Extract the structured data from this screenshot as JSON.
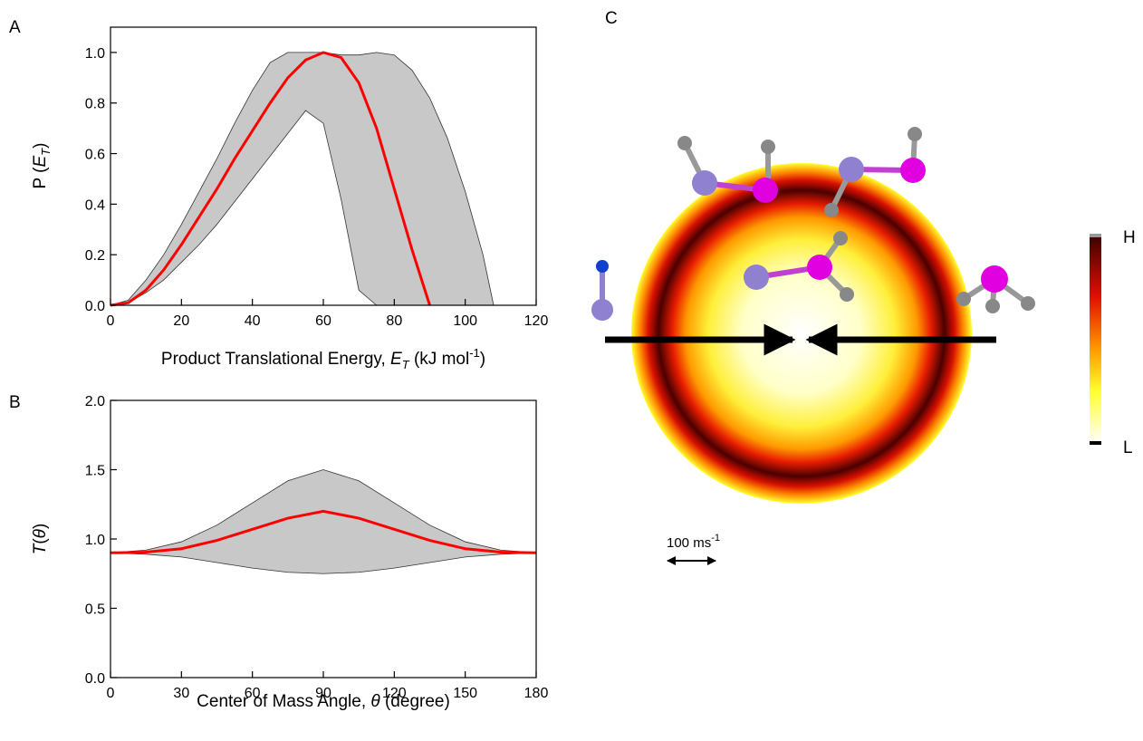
{
  "chart_data": [
    {
      "type": "line",
      "panel": "A",
      "xlabel_parts": [
        "Product Translational Energy, ",
        "E",
        "T",
        " (kJ mol",
        "-1",
        ")"
      ],
      "ylabel_parts": [
        "P (",
        "E",
        "T",
        ")"
      ],
      "x": [
        0,
        5,
        10,
        15,
        20,
        25,
        30,
        35,
        40,
        45,
        50,
        55,
        60,
        65,
        70,
        75,
        80,
        85,
        90,
        95,
        100,
        105,
        108
      ],
      "series": [
        {
          "color": "#ff0000",
          "values": [
            0,
            0.01,
            0.06,
            0.14,
            0.24,
            0.35,
            0.46,
            0.58,
            0.69,
            0.8,
            0.9,
            0.97,
            1.0,
            0.98,
            0.88,
            0.7,
            0.46,
            0.22,
            0,
            null,
            null,
            null,
            null
          ]
        }
      ],
      "band": {
        "color": "#c8c8c8",
        "upper": [
          0,
          0.02,
          0.1,
          0.2,
          0.32,
          0.45,
          0.58,
          0.72,
          0.85,
          0.96,
          1.0,
          1.0,
          1.0,
          0.99,
          0.99,
          1.0,
          0.99,
          0.93,
          0.82,
          0.66,
          0.45,
          0.2,
          0
        ],
        "lower": [
          0,
          0.01,
          0.05,
          0.1,
          0.17,
          0.24,
          0.32,
          0.41,
          0.5,
          0.59,
          0.68,
          0.77,
          0.72,
          0.42,
          0.06,
          0,
          0,
          0,
          0,
          0,
          0,
          0,
          0
        ]
      },
      "xlim": [
        0,
        120
      ],
      "xticks": [
        0,
        20,
        40,
        60,
        80,
        100,
        120
      ],
      "ylim": [
        0,
        1.1
      ],
      "yticks": [
        {
          "value": 0,
          "label": "0.0"
        },
        0.2,
        0.4,
        0.6,
        0.8,
        {
          "value": 1,
          "label": "1.0"
        }
      ]
    },
    {
      "type": "line",
      "panel": "B",
      "xlabel_parts": [
        "Center of Mass Angle, ",
        "θ",
        " (degree)"
      ],
      "ylabel_parts": [
        "T",
        "(",
        "θ",
        ")"
      ],
      "x": [
        0,
        15,
        30,
        45,
        60,
        75,
        90,
        105,
        120,
        135,
        150,
        165,
        180
      ],
      "series": [
        {
          "color": "#ff0000",
          "values": [
            0.9,
            0.905,
            0.93,
            0.99,
            1.07,
            1.15,
            1.2,
            1.15,
            1.07,
            0.99,
            0.93,
            0.905,
            0.9
          ]
        }
      ],
      "band": {
        "color": "#c8c8c8",
        "upper": [
          0.9,
          0.92,
          0.98,
          1.1,
          1.26,
          1.42,
          1.5,
          1.42,
          1.26,
          1.1,
          0.98,
          0.92,
          0.9
        ],
        "lower": [
          0.9,
          0.89,
          0.87,
          0.83,
          0.79,
          0.76,
          0.75,
          0.76,
          0.79,
          0.83,
          0.87,
          0.89,
          0.9
        ]
      },
      "xlim": [
        0,
        180
      ],
      "xticks": [
        0,
        30,
        60,
        90,
        120,
        150,
        180
      ],
      "ylim": [
        0,
        2
      ],
      "yticks": [
        {
          "value": 0,
          "label": "0.0"
        },
        0.5,
        {
          "value": 1,
          "label": "1.0"
        },
        1.5,
        {
          "value": 2,
          "label": "2.0"
        }
      ]
    }
  ],
  "panel_c": {
    "label": "C",
    "colorbar_high": "H",
    "colorbar_low": "L",
    "scale_bar": "100 ms",
    "scale_bar_sup": "-1"
  }
}
